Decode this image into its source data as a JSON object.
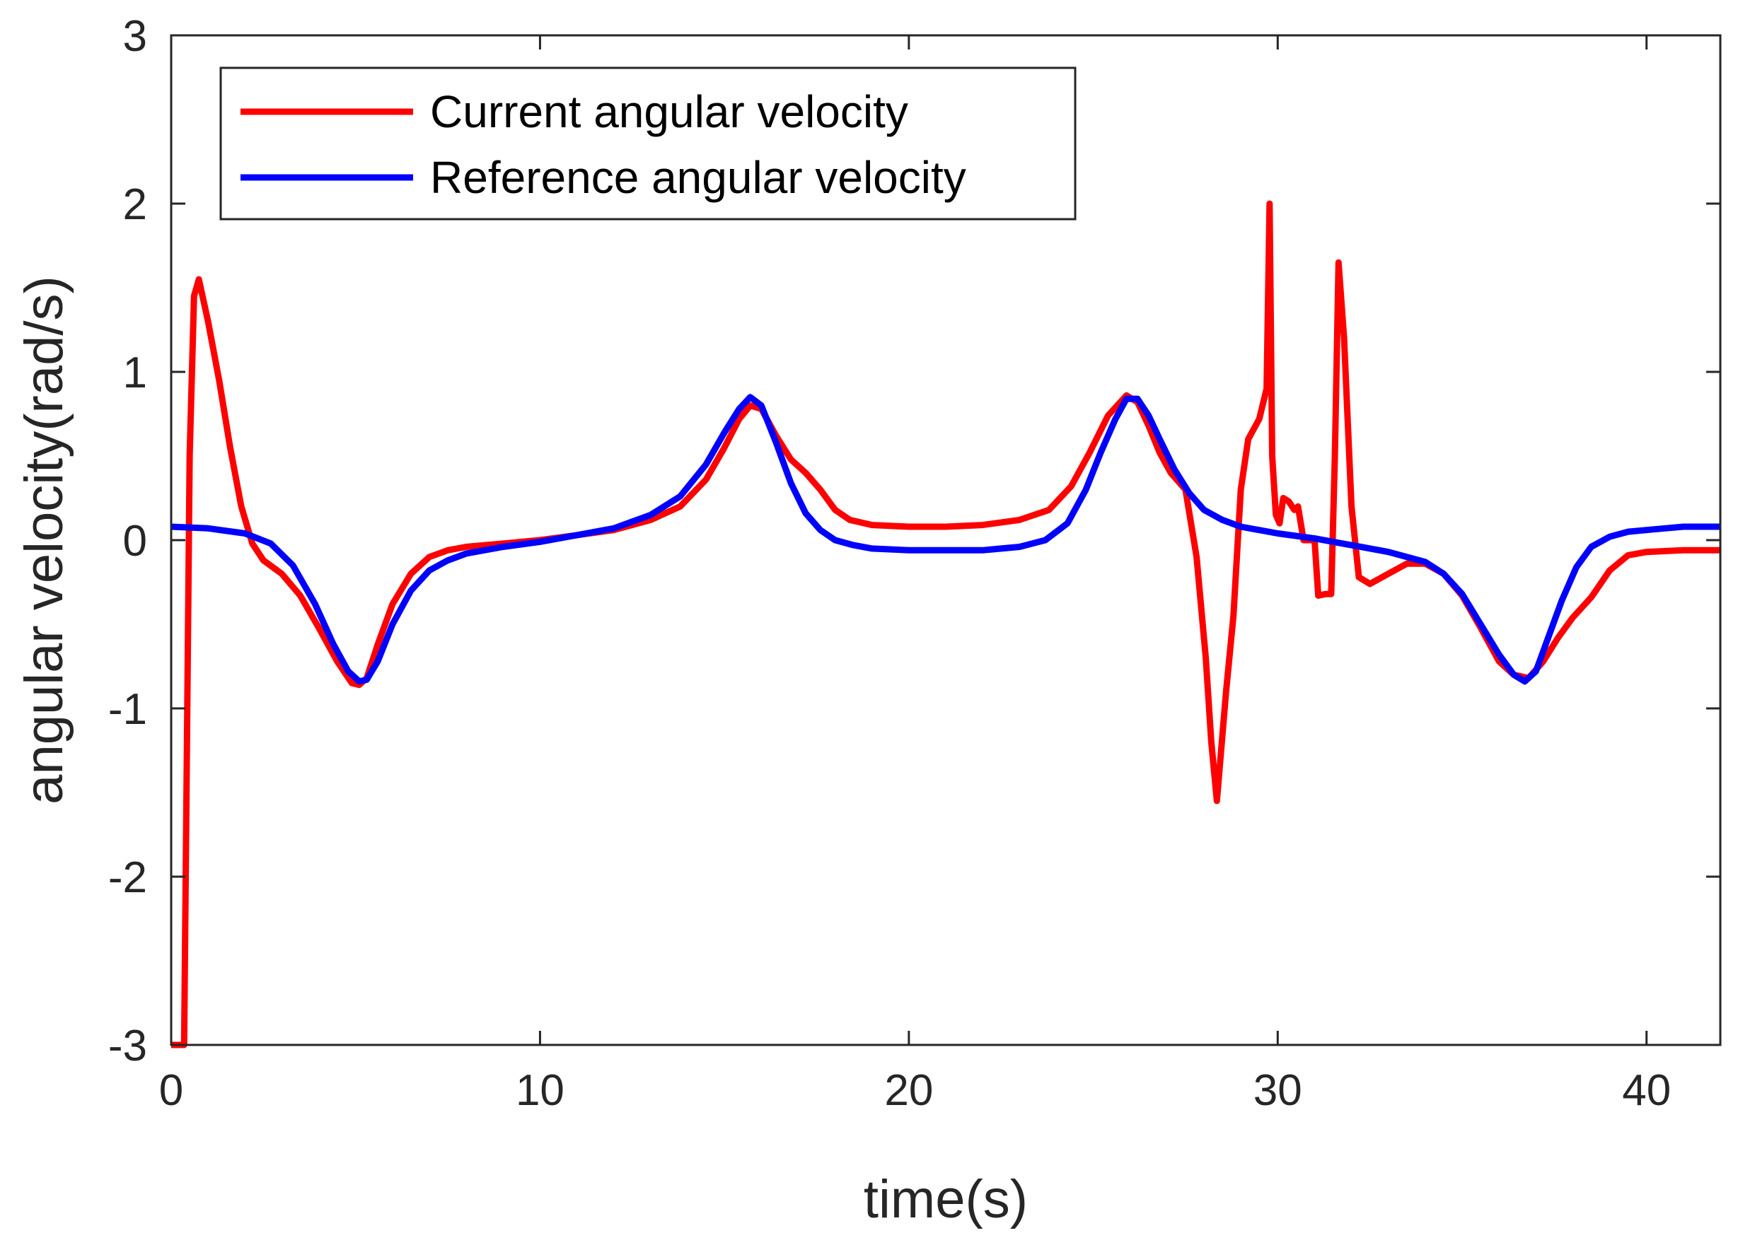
{
  "chart_data": {
    "type": "line",
    "title": "",
    "xlabel": "time(s)",
    "ylabel": "angular velocity(rad/s)",
    "xlim": [
      0,
      42
    ],
    "ylim": [
      -3,
      3
    ],
    "xticks": [
      0,
      10,
      20,
      30,
      40
    ],
    "yticks": [
      -3,
      -2,
      -1,
      0,
      1,
      2,
      3
    ],
    "grid": false,
    "legend_position": "top-left",
    "series": [
      {
        "name": "Current angular velocity",
        "color": "#ff0000",
        "x": [
          0,
          0.35,
          0.5,
          0.62,
          0.75,
          1.0,
          1.3,
          1.6,
          1.9,
          2.2,
          2.5,
          3.0,
          3.5,
          4.0,
          4.5,
          4.9,
          5.1,
          5.3,
          5.6,
          6.0,
          6.5,
          7.0,
          7.5,
          8.0,
          9.0,
          10.0,
          11.0,
          12.0,
          13.0,
          13.8,
          14.5,
          15.0,
          15.4,
          15.7,
          16.0,
          16.4,
          16.8,
          17.2,
          17.6,
          18.0,
          18.4,
          19.0,
          20.0,
          21.0,
          22.0,
          23.0,
          23.8,
          24.4,
          24.9,
          25.4,
          25.9,
          26.2,
          26.5,
          26.8,
          27.1,
          27.5,
          27.8,
          28.05,
          28.2,
          28.35,
          28.6,
          28.8,
          29.0,
          29.2,
          29.5,
          29.7,
          29.78,
          29.85,
          29.95,
          30.05,
          30.15,
          30.3,
          30.45,
          30.55,
          30.7,
          30.9,
          31.0,
          31.1,
          31.3,
          31.45,
          31.55,
          31.65,
          31.8,
          32.0,
          32.2,
          32.5,
          33.0,
          33.5,
          34.0,
          34.5,
          35.0,
          35.5,
          36.0,
          36.4,
          36.8,
          37.2,
          37.6,
          38.0,
          38.5,
          39.0,
          39.5,
          40.0,
          41.0,
          42.0
        ],
        "y": [
          -3.0,
          -3.0,
          0.5,
          1.45,
          1.55,
          1.3,
          0.95,
          0.55,
          0.2,
          -0.02,
          -0.12,
          -0.2,
          -0.33,
          -0.52,
          -0.72,
          -0.85,
          -0.86,
          -0.82,
          -0.62,
          -0.38,
          -0.2,
          -0.1,
          -0.06,
          -0.04,
          -0.02,
          0.0,
          0.03,
          0.06,
          0.12,
          0.2,
          0.36,
          0.55,
          0.72,
          0.8,
          0.78,
          0.62,
          0.48,
          0.4,
          0.3,
          0.18,
          0.12,
          0.09,
          0.08,
          0.08,
          0.09,
          0.12,
          0.18,
          0.32,
          0.52,
          0.74,
          0.86,
          0.82,
          0.68,
          0.52,
          0.4,
          0.3,
          -0.1,
          -0.7,
          -1.2,
          -1.55,
          -0.9,
          -0.45,
          0.3,
          0.6,
          0.72,
          0.9,
          2.0,
          0.5,
          0.15,
          0.1,
          0.25,
          0.23,
          0.18,
          0.2,
          0.0,
          0.0,
          0.0,
          -0.33,
          -0.32,
          -0.32,
          0.5,
          1.65,
          1.2,
          0.2,
          -0.22,
          -0.26,
          -0.2,
          -0.14,
          -0.14,
          -0.2,
          -0.33,
          -0.52,
          -0.72,
          -0.8,
          -0.82,
          -0.72,
          -0.58,
          -0.46,
          -0.34,
          -0.18,
          -0.09,
          -0.07,
          -0.06,
          -0.06
        ]
      },
      {
        "name": "Reference angular velocity",
        "color": "#0000ff",
        "x": [
          0,
          1.0,
          2.0,
          2.7,
          3.3,
          3.9,
          4.4,
          4.8,
          5.1,
          5.3,
          5.6,
          6.0,
          6.5,
          7.0,
          7.5,
          8.0,
          9.0,
          10.0,
          11.0,
          12.0,
          13.0,
          13.8,
          14.5,
          15.0,
          15.4,
          15.7,
          16.0,
          16.4,
          16.8,
          17.2,
          17.6,
          18.0,
          18.5,
          19.0,
          20.0,
          21.0,
          22.0,
          23.0,
          23.7,
          24.3,
          24.8,
          25.2,
          25.6,
          25.9,
          26.2,
          26.5,
          26.8,
          27.2,
          27.6,
          28.0,
          28.5,
          29.0,
          30.0,
          31.0,
          32.0,
          33.0,
          34.0,
          34.5,
          35.0,
          35.5,
          36.0,
          36.4,
          36.7,
          37.0,
          37.3,
          37.7,
          38.1,
          38.5,
          39.0,
          39.5,
          40.0,
          40.5,
          41.0,
          42.0
        ],
        "y": [
          0.08,
          0.07,
          0.04,
          -0.02,
          -0.15,
          -0.38,
          -0.62,
          -0.78,
          -0.84,
          -0.83,
          -0.72,
          -0.5,
          -0.3,
          -0.18,
          -0.12,
          -0.08,
          -0.04,
          -0.01,
          0.03,
          0.07,
          0.15,
          0.26,
          0.45,
          0.64,
          0.78,
          0.85,
          0.8,
          0.58,
          0.34,
          0.16,
          0.06,
          0.0,
          -0.03,
          -0.05,
          -0.06,
          -0.06,
          -0.06,
          -0.04,
          0.0,
          0.1,
          0.3,
          0.52,
          0.72,
          0.84,
          0.84,
          0.74,
          0.6,
          0.42,
          0.28,
          0.18,
          0.12,
          0.08,
          0.04,
          0.01,
          -0.03,
          -0.07,
          -0.13,
          -0.2,
          -0.32,
          -0.5,
          -0.68,
          -0.8,
          -0.84,
          -0.78,
          -0.6,
          -0.36,
          -0.16,
          -0.04,
          0.02,
          0.05,
          0.06,
          0.07,
          0.08,
          0.08
        ]
      }
    ]
  }
}
